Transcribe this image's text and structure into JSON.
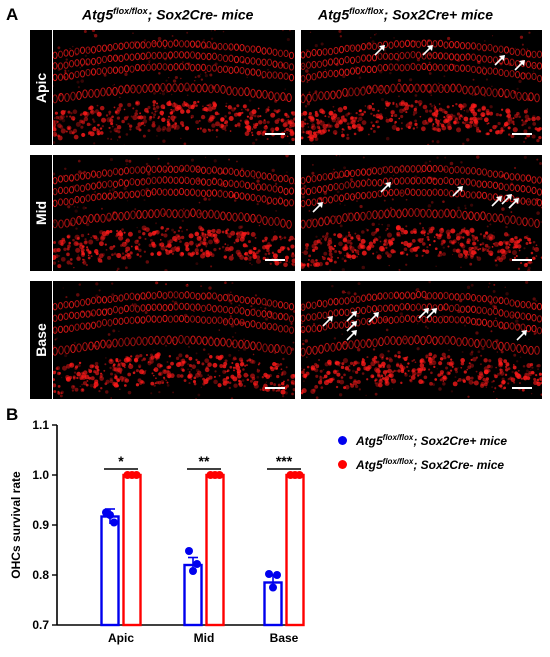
{
  "panels": {
    "a": "A",
    "b": "B"
  },
  "columns": [
    {
      "gene": "Atg5",
      "sup": "flox/flox",
      "rest": "; Sox2Cre- mice"
    },
    {
      "gene": "Atg5",
      "sup": "flox/flox",
      "rest": "; Sox2Cre+ mice"
    }
  ],
  "rows": [
    "Apic",
    "Mid",
    "Base"
  ],
  "colors": {
    "red": "#ff0000",
    "blue": "#0000ee",
    "image_red": "#ff1a1a"
  },
  "arrows_per_image": {
    "Apic": [
      0,
      4
    ],
    "Mid": [
      0,
      5
    ],
    "Base": [
      0,
      8
    ]
  },
  "legend": [
    {
      "gene": "Atg5",
      "sup": "flox/flox",
      "rest": "; Sox2Cre+ mice",
      "color": "#0000ee"
    },
    {
      "gene": "Atg5",
      "sup": "flox/flox",
      "rest": "; Sox2Cre- mice",
      "color": "#ff0000"
    }
  ],
  "chart_data": {
    "type": "bar",
    "categories": [
      "Apic",
      "Mid",
      "Base"
    ],
    "ylabel": "OHCs survival rate",
    "ylim": [
      0.7,
      1.1
    ],
    "yticks": [
      "0.7",
      "0.8",
      "0.9",
      "1.0",
      "1.1"
    ],
    "series": [
      {
        "name": "Atg5flox/flox; Sox2Cre+ mice",
        "color": "#0000ee",
        "values": [
          0.917,
          0.82,
          0.785
        ],
        "errors": [
          0.015,
          0.015,
          0.015
        ],
        "points": [
          [
            0.925,
            0.905,
            0.92
          ],
          [
            0.848,
            0.822,
            0.808
          ],
          [
            0.802,
            0.8,
            0.775
          ]
        ]
      },
      {
        "name": "Atg5flox/flox; Sox2Cre- mice",
        "color": "#ff0000",
        "values": [
          1.0,
          1.0,
          1.0
        ],
        "errors": [
          0,
          0,
          0
        ],
        "points": [
          [
            1.0,
            1.0,
            1.0
          ],
          [
            1.0,
            1.0,
            1.0
          ],
          [
            1.0,
            1.0,
            1.0
          ]
        ]
      }
    ],
    "significance": [
      "*",
      "**",
      "***"
    ]
  }
}
